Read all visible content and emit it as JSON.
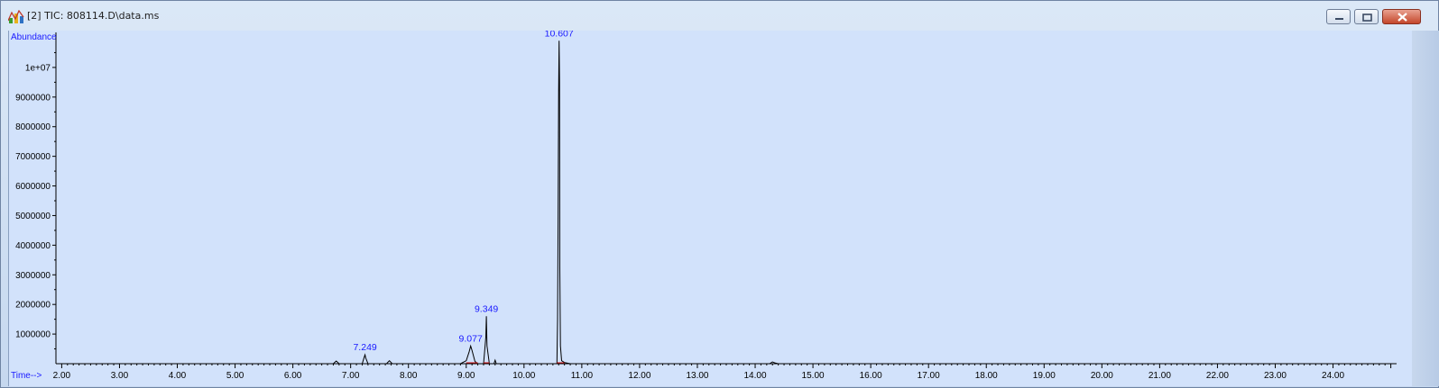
{
  "window": {
    "title": "[2] TIC: 808114.D\\data.ms",
    "icon": "chromatogram-app-icon",
    "controls": [
      "minimize-icon",
      "restore-icon",
      "close-icon"
    ]
  },
  "colors": {
    "plot_background": "#d2e2fb",
    "axis_label": "#1a1aff",
    "trace": "#000000",
    "baseline_marker": "#d01010"
  },
  "chart_data": {
    "type": "line",
    "ylabel": "Abundance",
    "xlabel": "Time-->",
    "xlim": [
      1.9,
      25.1
    ],
    "ylim": [
      0,
      11000000
    ],
    "x_ticks": [
      "2.00",
      "3.00",
      "4.00",
      "5.00",
      "6.00",
      "7.00",
      "8.00",
      "9.00",
      "10.00",
      "11.00",
      "12.00",
      "13.00",
      "14.00",
      "15.00",
      "16.00",
      "17.00",
      "18.00",
      "19.00",
      "20.00",
      "21.00",
      "22.00",
      "23.00",
      "24.00"
    ],
    "y_ticks": [
      "1000000",
      "2000000",
      "3000000",
      "4000000",
      "5000000",
      "6000000",
      "7000000",
      "8000000",
      "9000000",
      "1e+07"
    ],
    "peak_labels": [
      {
        "label": "7.249",
        "x": 7.249,
        "y": 300000
      },
      {
        "label": "9.077",
        "x": 9.077,
        "y": 600000
      },
      {
        "label": "9.349",
        "x": 9.349,
        "y": 1600000
      },
      {
        "label": "10.607",
        "x": 10.607,
        "y": 10900000
      }
    ],
    "series": [
      {
        "x": [
          1.9,
          6.6,
          6.7,
          6.75,
          6.8,
          7.2,
          7.24,
          7.249,
          7.26,
          7.3,
          7.62,
          7.67,
          7.72,
          8.9,
          9.0,
          9.05,
          9.077,
          9.1,
          9.15,
          9.2,
          9.3,
          9.34,
          9.349,
          9.36,
          9.4,
          9.48,
          9.5,
          9.52,
          10.5,
          10.57,
          10.58,
          10.59,
          10.6,
          10.607,
          10.615,
          10.62,
          10.63,
          10.65,
          10.7,
          10.8,
          10.9,
          14.2,
          14.25,
          14.3,
          14.35,
          14.4,
          25.1
        ],
        "y": [
          0,
          0,
          0,
          90000,
          0,
          0,
          250000,
          300000,
          200000,
          0,
          0,
          100000,
          0,
          0,
          100000,
          400000,
          600000,
          450000,
          80000,
          0,
          0,
          900000,
          1600000,
          600000,
          0,
          0,
          120000,
          0,
          0,
          0,
          1500000,
          4800000,
          9200000,
          10900000,
          9500000,
          3200000,
          600000,
          100000,
          40000,
          0,
          0,
          0,
          0,
          60000,
          20000,
          0,
          0
        ]
      }
    ]
  }
}
